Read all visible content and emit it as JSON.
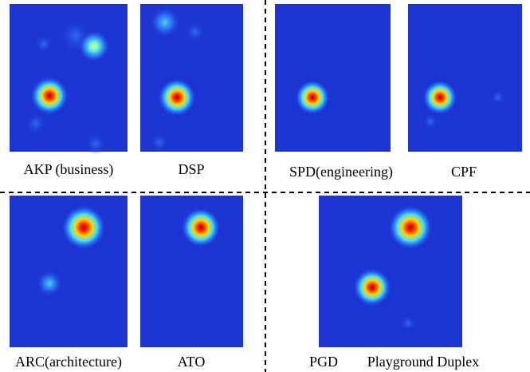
{
  "panels": [
    {
      "label": "AKP (business)"
    },
    {
      "label": "DSP"
    },
    {
      "label": "SPD(engineering)"
    },
    {
      "label": "CPF"
    },
    {
      "label": "ARC(architecture)"
    },
    {
      "label": "ATO"
    },
    {
      "label": "PGD"
    }
  ],
  "caption": "Playground Duplex"
}
